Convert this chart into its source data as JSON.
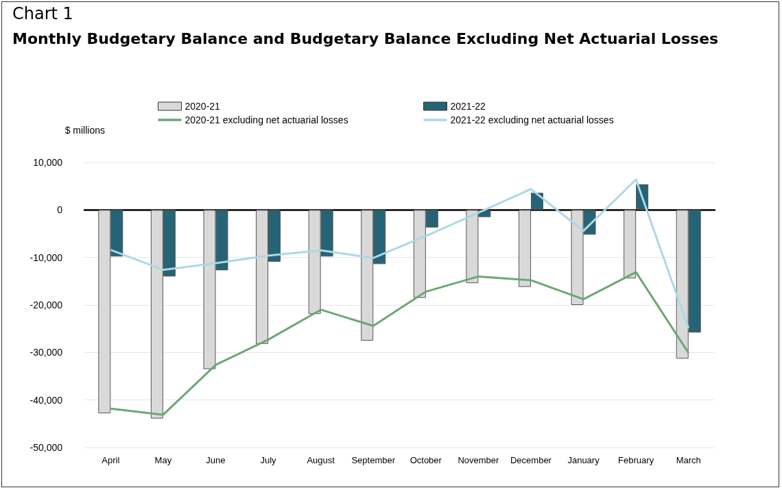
{
  "chart_data": {
    "type": "bar",
    "subtitle": "Chart 1",
    "title": "Monthly Budgetary Balance and Budgetary Balance Excluding Net Actuarial Losses",
    "ylabel": "$ millions",
    "categories": [
      "April",
      "May",
      "June",
      "July",
      "August",
      "September",
      "October",
      "November",
      "December",
      "January",
      "February",
      "March"
    ],
    "series": [
      {
        "name": "2020-21",
        "color": "#d9d9d9",
        "values": [
          -42800,
          -43900,
          -33500,
          -28200,
          -21900,
          -27500,
          -18500,
          -15400,
          -16200,
          -20000,
          -14400,
          -31300
        ]
      },
      {
        "name": "2021-22",
        "color": "#256476",
        "values": [
          -9800,
          -14000,
          -12700,
          -10900,
          -9800,
          -11400,
          -3700,
          -1500,
          3600,
          -5200,
          5400,
          -25800
        ]
      },
      {
        "name": "2020-21 excluding net actuarial losses",
        "type": "line",
        "color": "#6aa874",
        "values": [
          -41800,
          -43100,
          -32600,
          -27300,
          -21000,
          -24400,
          -17200,
          -14000,
          -14800,
          -18800,
          -13100,
          -30100
        ]
      },
      {
        "name": "2021-22 excluding net actuarial losses",
        "type": "line",
        "color": "#add8e6",
        "values": [
          -8400,
          -12600,
          -11200,
          -9600,
          -8500,
          -10100,
          -5500,
          -600,
          4400,
          -4400,
          6400,
          -24900
        ]
      }
    ],
    "ylim": [
      -50000,
      10000
    ],
    "yticks": [
      {
        "value": -50000,
        "label": "-50,000"
      },
      {
        "value": -40000,
        "label": "-40,000"
      },
      {
        "value": -30000,
        "label": "-30,000"
      },
      {
        "value": -20000,
        "label": "-20,000"
      },
      {
        "value": -10000,
        "label": "-10,000"
      },
      0,
      {
        "value": 10000,
        "label": "10,000"
      }
    ],
    "grid": "y",
    "legend": "top",
    "marker": "none",
    "line_style": "solid"
  }
}
